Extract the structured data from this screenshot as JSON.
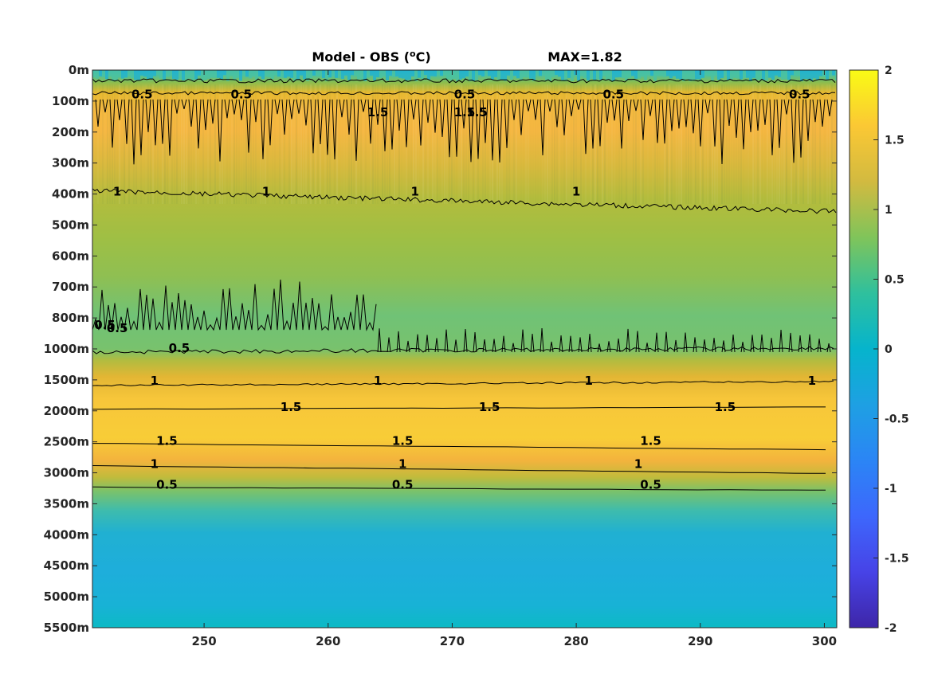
{
  "title": {
    "main": "Model - OBS (",
    "sup": "o",
    "unit": "C)",
    "max": "MAX=1.82"
  },
  "chart_data": {
    "type": "heatmap",
    "title": "Model - OBS (oC)    MAX=1.82",
    "max_value": 1.82,
    "x": {
      "range": [
        241,
        301
      ],
      "ticks": [
        250,
        260,
        270,
        280,
        290,
        300
      ],
      "tick_labels": [
        "250",
        "260",
        "270",
        "280",
        "290",
        "300"
      ]
    },
    "y": {
      "scale": "nonuniform depth (0-1000m every 100m, then every 500m)",
      "ticks": [
        0,
        100,
        200,
        300,
        400,
        500,
        600,
        700,
        800,
        1000,
        1500,
        2000,
        2500,
        3000,
        3500,
        4000,
        4500,
        5000,
        5500
      ],
      "tick_labels": [
        "0m",
        "100m",
        "200m",
        "300m",
        "400m",
        "500m",
        "600m",
        "700m",
        "800m",
        "1000m",
        "1500m",
        "2000m",
        "2500m",
        "3000m",
        "3500m",
        "4000m",
        "4500m",
        "5000m",
        "5500m"
      ],
      "reversed": true
    },
    "colorbar": {
      "colormap": "parula",
      "range": [
        -2,
        2
      ],
      "ticks": [
        2,
        1.5,
        1,
        0.5,
        0,
        -0.5,
        -1,
        -1.5,
        -2
      ],
      "tick_labels": [
        "2",
        "1.5",
        "1",
        "0.5",
        "0",
        "-0.5",
        "-1",
        "-1.5",
        "-2"
      ]
    },
    "depth_profile": [
      {
        "depth": "0m",
        "value": 0.3
      },
      {
        "depth": "50m",
        "value": 0.6
      },
      {
        "depth": "100m",
        "value": 1.2
      },
      {
        "depth": "200m",
        "value": 1.4
      },
      {
        "depth": "300m",
        "value": 1.25
      },
      {
        "depth": "400m",
        "value": 1.0
      },
      {
        "depth": "500m",
        "value": 0.9
      },
      {
        "depth": "600m",
        "value": 0.8
      },
      {
        "depth": "700m",
        "value": 0.75
      },
      {
        "depth": "800m",
        "value": 0.65
      },
      {
        "depth": "1000m",
        "value": 0.6
      },
      {
        "depth": "1500m",
        "value": 1.1
      },
      {
        "depth": "2000m",
        "value": 1.5
      },
      {
        "depth": "2500m",
        "value": 1.5
      },
      {
        "depth": "3000m",
        "value": 0.9
      },
      {
        "depth": "3500m",
        "value": 0.4
      },
      {
        "depth": "4000m",
        "value": 0.15
      },
      {
        "depth": "5000m",
        "value": 0.1
      },
      {
        "depth": "5500m",
        "value": 0.05
      }
    ],
    "contour_levels": [
      0.5,
      1,
      1.5
    ],
    "contour_labels": [
      {
        "text": "0.5",
        "x": 245,
        "depth": "50m"
      },
      {
        "text": "0.5",
        "x": 253,
        "depth": "50m"
      },
      {
        "text": "0.5",
        "x": 271,
        "depth": "50m"
      },
      {
        "text": "0.5",
        "x": 283,
        "depth": "50m"
      },
      {
        "text": "0.5",
        "x": 298,
        "depth": "50m"
      },
      {
        "text": "1",
        "x": 243,
        "depth": "400m"
      },
      {
        "text": "1",
        "x": 255,
        "depth": "400m"
      },
      {
        "text": "1",
        "x": 267,
        "depth": "400m"
      },
      {
        "text": "1",
        "x": 280,
        "depth": "400m"
      },
      {
        "text": "1",
        "x": 246,
        "depth": "1500m"
      },
      {
        "text": "1",
        "x": 264,
        "depth": "1500m"
      },
      {
        "text": "1",
        "x": 281,
        "depth": "1500m"
      },
      {
        "text": "1",
        "x": 299,
        "depth": "1500m"
      },
      {
        "text": "1.5",
        "x": 257,
        "depth": "2000m"
      },
      {
        "text": "1.5",
        "x": 273,
        "depth": "2000m"
      },
      {
        "text": "1.5",
        "x": 292,
        "depth": "2000m"
      },
      {
        "text": "1.5",
        "x": 247,
        "depth": "2500m"
      },
      {
        "text": "1.5",
        "x": 266,
        "depth": "2500m"
      },
      {
        "text": "1.5",
        "x": 286,
        "depth": "2500m"
      },
      {
        "text": "1",
        "x": 246,
        "depth": "3000m"
      },
      {
        "text": "1",
        "x": 266,
        "depth": "3000m"
      },
      {
        "text": "1",
        "x": 285,
        "depth": "3000m"
      },
      {
        "text": "0.5",
        "x": 247,
        "depth": "3000m"
      },
      {
        "text": "0.5",
        "x": 266,
        "depth": "3000m"
      },
      {
        "text": "0.5",
        "x": 286,
        "depth": "3000m"
      },
      {
        "text": "0.5",
        "x": 248,
        "depth": "1000m"
      },
      {
        "text": "0.5",
        "x": 242,
        "depth": "800m"
      },
      {
        "text": "0.5",
        "x": 243,
        "depth": "800m"
      },
      {
        "text": "1.5",
        "x": 264,
        "depth": "200m"
      },
      {
        "text": "1.5",
        "x": 272,
        "depth": "200m"
      },
      {
        "text": "1.5",
        "x": 271,
        "depth": "200m"
      }
    ]
  }
}
